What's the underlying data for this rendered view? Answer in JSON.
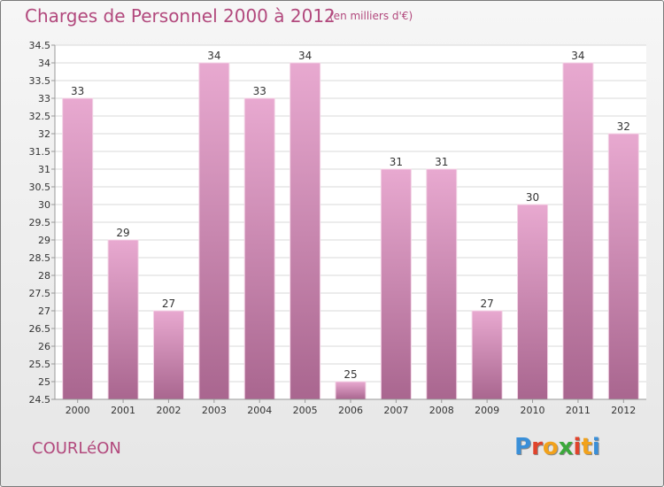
{
  "header": {
    "title": "Charges de Personnel 2000 à 2012",
    "unit": "(en milliers d'€)"
  },
  "footer": {
    "city": "COURLéON",
    "logo_letters": [
      "P",
      "r",
      "o",
      "x",
      "i",
      "t",
      "i"
    ],
    "logo_colors": [
      "#3a8fd8",
      "#e0432b",
      "#f2a21b",
      "#3aa83a",
      "#e0432b",
      "#f2a21b",
      "#3a8fd8"
    ]
  },
  "colors": {
    "title": "#b2497d",
    "bar_top": "#e8a9d0",
    "bar_bottom": "#a9668f",
    "bar_edge": "#f3d4e6",
    "plot_bg": "#ffffff",
    "grid": "#d9d9d9"
  },
  "chart_data": {
    "type": "bar",
    "categories": [
      "2000",
      "2001",
      "2002",
      "2003",
      "2004",
      "2005",
      "2006",
      "2007",
      "2008",
      "2009",
      "2010",
      "2011",
      "2012"
    ],
    "values": [
      33,
      29,
      27,
      34,
      33,
      34,
      25,
      31,
      31,
      27,
      30,
      34,
      32
    ],
    "data_labels": [
      "33",
      "29",
      "27",
      "34",
      "33",
      "34",
      "25",
      "31",
      "31",
      "27",
      "30",
      "34",
      "32"
    ],
    "y_ticks": [
      "24.5",
      "25",
      "25.5",
      "26",
      "26.5",
      "27",
      "27.5",
      "28",
      "28.5",
      "29",
      "29.5",
      "30",
      "30.5",
      "31",
      "31.5",
      "32",
      "32.5",
      "33",
      "33.5",
      "34",
      "34.5"
    ],
    "ylim": [
      24.5,
      34.5
    ],
    "grid": true,
    "title": "Charges de Personnel 2000 à 2012",
    "xlabel": "",
    "ylabel": ""
  }
}
